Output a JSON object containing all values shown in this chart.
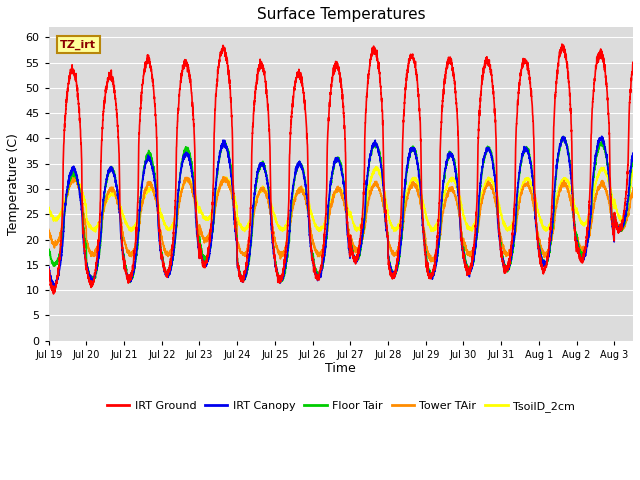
{
  "title": "Surface Temperatures",
  "xlabel": "Time",
  "ylabel": "Temperature (C)",
  "ylim": [
    0,
    62
  ],
  "yticks": [
    0,
    5,
    10,
    15,
    20,
    25,
    30,
    35,
    40,
    45,
    50,
    55,
    60
  ],
  "annotation_text": "TZ_irt",
  "series": {
    "IRT Ground": {
      "color": "#FF0000",
      "lw": 1.2
    },
    "IRT Canopy": {
      "color": "#0000EE",
      "lw": 1.2
    },
    "Floor Tair": {
      "color": "#00CC00",
      "lw": 1.2
    },
    "Tower TAir": {
      "color": "#FF8C00",
      "lw": 1.2
    },
    "TsoilD_2cm": {
      "color": "#FFFF00",
      "lw": 1.2
    }
  },
  "n_days": 15.5,
  "points_per_day": 288,
  "plot_bg": "#DCDCDC",
  "fig_bg": "#FFFFFF",
  "xtick_labels": [
    "Jul 19",
    "Jul 20",
    "Jul 21",
    "Jul 22",
    "Jul 23",
    "Jul 24",
    "Jul 25",
    "Jul 26",
    "Jul 27",
    "Jul 28",
    "Jul 29",
    "Jul 30",
    "Jul 31",
    "Aug 1",
    "Aug 2",
    "Aug 3"
  ],
  "xtick_days": [
    0,
    1,
    2,
    3,
    4,
    5,
    6,
    7,
    8,
    9,
    10,
    11,
    12,
    13,
    14,
    15
  ],
  "irt_ground_peaks": [
    53.5,
    52.5,
    55.5,
    55.0,
    57.8,
    54.5,
    52.8,
    54.5,
    57.5,
    56.5,
    55.5,
    55.5,
    55.5,
    58.0,
    57.0,
    58.0
  ],
  "irt_ground_troughs": [
    10.0,
    11.0,
    12.0,
    13.0,
    15.0,
    12.0,
    12.0,
    12.5,
    16.0,
    12.5,
    12.5,
    13.5,
    14.0,
    14.0,
    16.0,
    22.0
  ],
  "irt_canopy_peaks": [
    34.0,
    34.0,
    36.0,
    37.0,
    39.0,
    35.0,
    35.0,
    36.0,
    39.0,
    38.0,
    37.0,
    38.0,
    38.0,
    40.0,
    40.0,
    40.0
  ],
  "irt_canopy_troughs": [
    11.0,
    12.0,
    12.0,
    13.0,
    15.0,
    12.0,
    12.0,
    12.5,
    16.0,
    13.0,
    12.5,
    13.5,
    14.0,
    15.0,
    16.0,
    22.0
  ],
  "floor_tair_peaks": [
    33.0,
    34.0,
    37.0,
    38.0,
    39.0,
    35.0,
    35.0,
    36.0,
    39.0,
    38.0,
    37.0,
    38.0,
    38.0,
    40.0,
    39.0,
    39.0
  ],
  "floor_tair_troughs": [
    15.0,
    12.0,
    12.0,
    13.0,
    16.0,
    12.0,
    12.0,
    13.0,
    16.0,
    13.0,
    13.0,
    14.0,
    14.0,
    15.0,
    17.0,
    22.0
  ],
  "tower_tair_peaks": [
    32.0,
    30.0,
    31.0,
    32.0,
    32.0,
    30.0,
    30.0,
    30.0,
    31.0,
    31.0,
    30.0,
    31.0,
    31.0,
    31.0,
    31.0,
    32.0
  ],
  "tower_tair_troughs": [
    19.0,
    17.0,
    17.0,
    17.0,
    20.0,
    17.0,
    17.0,
    17.0,
    18.0,
    17.0,
    16.0,
    17.0,
    17.0,
    17.0,
    18.0,
    22.0
  ],
  "tsoil_peaks": [
    32.0,
    29.0,
    30.0,
    32.0,
    32.0,
    30.0,
    30.0,
    30.0,
    34.0,
    32.0,
    32.0,
    32.0,
    32.0,
    32.0,
    34.0,
    38.0
  ],
  "tsoil_troughs": [
    24.0,
    22.0,
    22.0,
    22.0,
    24.0,
    22.0,
    22.0,
    22.0,
    22.0,
    22.0,
    22.0,
    22.0,
    22.0,
    22.0,
    23.0,
    24.0
  ]
}
